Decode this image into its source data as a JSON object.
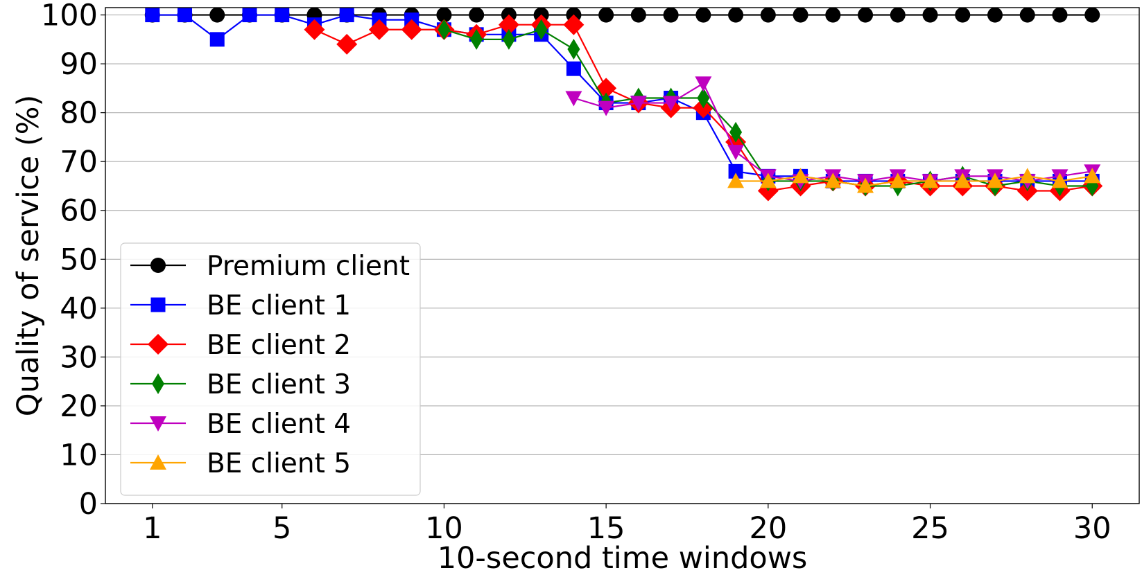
{
  "chart_data": {
    "type": "line",
    "title": "",
    "xlabel": "10-second time windows",
    "ylabel": "Quality of service (%)",
    "xlim": [
      -0.45,
      31.45
    ],
    "ylim": [
      0,
      101.5
    ],
    "xticks": [
      1,
      5,
      10,
      15,
      20,
      25,
      30
    ],
    "yticks": [
      0,
      10,
      20,
      30,
      40,
      50,
      60,
      70,
      80,
      90,
      100
    ],
    "grid": "horizontal",
    "legend_position": "lower-left",
    "series": [
      {
        "name": "Premium client",
        "color": "#000000",
        "marker": "circle",
        "x": [
          1,
          2,
          3,
          4,
          5,
          6,
          7,
          8,
          9,
          10,
          11,
          12,
          13,
          14,
          15,
          16,
          17,
          18,
          19,
          20,
          21,
          22,
          23,
          24,
          25,
          26,
          27,
          28,
          29,
          30
        ],
        "y": [
          100,
          100,
          100,
          100,
          100,
          100,
          100,
          100,
          100,
          100,
          100,
          100,
          100,
          100,
          100,
          100,
          100,
          100,
          100,
          100,
          100,
          100,
          100,
          100,
          100,
          100,
          100,
          100,
          100,
          100
        ]
      },
      {
        "name": "BE client 1",
        "color": "#0000ff",
        "marker": "square",
        "x": [
          1,
          2,
          3,
          4,
          5,
          6,
          7,
          8,
          9,
          10,
          11,
          12,
          13,
          14,
          15,
          16,
          17,
          18,
          19,
          20,
          21,
          22,
          23,
          24,
          25,
          26,
          27,
          28,
          29,
          30
        ],
        "y": [
          100,
          100,
          95,
          100,
          100,
          98,
          100,
          99,
          99,
          97,
          96,
          96,
          96,
          89,
          82,
          82,
          83,
          80,
          68,
          67,
          67,
          66,
          66,
          66,
          66,
          66,
          66,
          66,
          66,
          66
        ]
      },
      {
        "name": "BE client 2",
        "color": "#ff0000",
        "marker": "diamond",
        "x": [
          6,
          7,
          8,
          9,
          10,
          11,
          12,
          13,
          14,
          15,
          16,
          17,
          18,
          19,
          20,
          21,
          22,
          23,
          24,
          25,
          26,
          27,
          28,
          29,
          30
        ],
        "y": [
          97,
          94,
          97,
          97,
          97,
          96,
          98,
          98,
          98,
          85,
          82,
          81,
          81,
          74,
          64,
          65,
          66,
          65,
          66,
          65,
          65,
          65,
          64,
          64,
          65
        ]
      },
      {
        "name": "BE client 3",
        "color": "#008000",
        "marker": "thin_diamond",
        "x": [
          10,
          11,
          12,
          13,
          14,
          15,
          16,
          17,
          18,
          19,
          20,
          21,
          22,
          23,
          24,
          25,
          26,
          27,
          28,
          29,
          30
        ],
        "y": [
          97,
          95,
          95,
          97,
          93,
          82,
          83,
          83,
          83,
          76,
          66,
          66,
          66,
          65,
          65,
          66,
          67,
          65,
          66,
          65,
          65
        ]
      },
      {
        "name": "BE client 4",
        "color": "#bf00bf",
        "marker": "triangle_down",
        "x": [
          14,
          15,
          16,
          17,
          18,
          19,
          20,
          21,
          22,
          23,
          24,
          25,
          26,
          27,
          28,
          29,
          30
        ],
        "y": [
          83,
          81,
          82,
          82,
          86,
          72,
          67,
          66,
          67,
          66,
          67,
          66,
          67,
          67,
          66,
          67,
          68
        ]
      },
      {
        "name": "BE client 5",
        "color": "#ffa500",
        "marker": "triangle_up",
        "x": [
          19,
          20,
          21,
          22,
          23,
          24,
          25,
          26,
          27,
          28,
          29,
          30
        ],
        "y": [
          66,
          66,
          67,
          66,
          65,
          66,
          66,
          66,
          66,
          67,
          66,
          67
        ]
      }
    ]
  }
}
